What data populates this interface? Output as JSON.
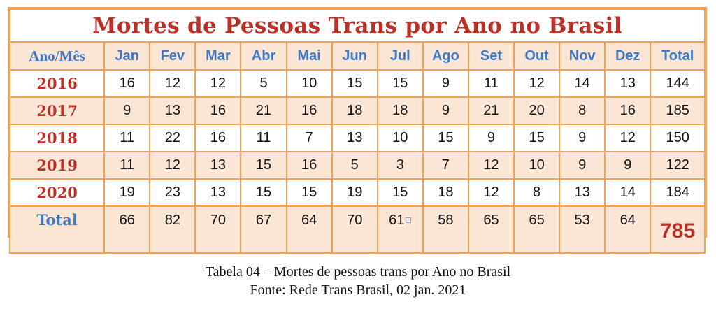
{
  "table": {
    "title": "Mortes de Pessoas Trans por Ano no Brasil",
    "header": {
      "first": "Ano/Mês",
      "months": [
        "Jan",
        "Fev",
        "Mar",
        "Abr",
        "Mai",
        "Jun",
        "Jul",
        "Ago",
        "Set",
        "Out",
        "Nov",
        "Dez"
      ],
      "total": "Total"
    },
    "rows": [
      {
        "year": "2016",
        "values": [
          "16",
          "12",
          "12",
          "5",
          "10",
          "15",
          "15",
          "9",
          "11",
          "12",
          "14",
          "13"
        ],
        "total": "144"
      },
      {
        "year": "2017",
        "values": [
          "9",
          "13",
          "16",
          "21",
          "16",
          "18",
          "18",
          "9",
          "21",
          "20",
          "8",
          "16"
        ],
        "total": "185"
      },
      {
        "year": "2018",
        "values": [
          "11",
          "22",
          "16",
          "11",
          "7",
          "13",
          "10",
          "15",
          "9",
          "15",
          "9",
          "12"
        ],
        "total": "150"
      },
      {
        "year": "2019",
        "values": [
          "11",
          "12",
          "13",
          "15",
          "16",
          "5",
          "3",
          "7",
          "12",
          "10",
          "9",
          "9"
        ],
        "total": "122"
      },
      {
        "year": "2020",
        "values": [
          "19",
          "23",
          "13",
          "15",
          "15",
          "19",
          "15",
          "18",
          "12",
          "8",
          "13",
          "14"
        ],
        "total": "184"
      }
    ],
    "totals_row": {
      "label": "Total",
      "values": [
        "66",
        "82",
        "70",
        "67",
        "64",
        "70",
        "61",
        "58",
        "65",
        "65",
        "53",
        "64"
      ],
      "grand_total": "785"
    },
    "note_icon": "comment-marker-icon"
  },
  "caption": {
    "line1": "Tabela 04 – Mortes de pessoas trans por Ano no Brasil",
    "line2": "Fonte: Rede Trans Brasil, 02 jan. 2021"
  },
  "colors": {
    "title_red": "#b8322a",
    "header_blue": "#3d79c7",
    "border_orange": "#f0a256",
    "stripe_peach": "#fbe6d6"
  }
}
